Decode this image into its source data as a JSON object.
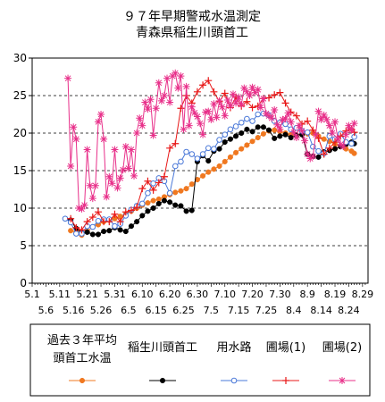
{
  "chart_data": {
    "type": "line",
    "title": [
      "９７年早期警戒水温測定",
      "青森県稲生川頭首工"
    ],
    "ylim": [
      0,
      30
    ],
    "yticks": [
      0,
      5,
      10,
      15,
      20,
      25,
      30
    ],
    "xlim": [
      0,
      122
    ],
    "xtick_labels_top": [
      "5.1",
      "5.11",
      "5.21",
      "5.31",
      "6.10",
      "6.20",
      "6.30",
      "7.10",
      "7.20",
      "7.30",
      "8.9",
      "8.19",
      "8.29"
    ],
    "xtick_labels_bottom": [
      "5.6",
      "5.16",
      "5.26",
      "6.5",
      "6.15",
      "6.25",
      "7.5",
      "7.15",
      "7.25",
      "8.4",
      "8.14",
      "8.24"
    ],
    "grid": "y-dashed",
    "legend_position": "bottom",
    "series": [
      {
        "name": "過去３年平均頭首工水温",
        "color": "#f07820",
        "marker": "circle-filled",
        "x": [
          14,
          16,
          18,
          20,
          22,
          24,
          26,
          28,
          30,
          32,
          34,
          36,
          38,
          40,
          42,
          44,
          46,
          48,
          50,
          52,
          54,
          56,
          58,
          60,
          62,
          64,
          66,
          68,
          70,
          72,
          74,
          76,
          78,
          80,
          82,
          84,
          86,
          88,
          90,
          92,
          94,
          96,
          98,
          100,
          102,
          104,
          106,
          108,
          110,
          112,
          114,
          116,
          117
        ],
        "values": [
          7.0,
          6.8,
          6.4,
          6.9,
          7.5,
          7.8,
          8.2,
          8.4,
          8.6,
          8.9,
          9.2,
          9.6,
          10.0,
          10.4,
          10.7,
          11.0,
          11.2,
          11.5,
          11.8,
          12.1,
          12.3,
          12.6,
          13.2,
          13.8,
          14.3,
          14.8,
          15.2,
          15.6,
          16.2,
          16.8,
          17.4,
          17.9,
          18.4,
          18.9,
          19.4,
          19.9,
          20.3,
          20.4,
          20.2,
          20.0,
          19.8,
          19.7,
          19.8,
          19.9,
          20.0,
          19.6,
          19.2,
          18.9,
          18.5,
          18.2,
          17.9,
          17.6,
          17.3
        ]
      },
      {
        "name": "稲生川頭首工",
        "color": "#000000",
        "marker": "circle-filled",
        "x": [
          12,
          14,
          16,
          18,
          20,
          22,
          24,
          26,
          28,
          30,
          32,
          34,
          36,
          38,
          40,
          42,
          44,
          46,
          48,
          50,
          52,
          54,
          56,
          58,
          60,
          62,
          64,
          66,
          68,
          70,
          72,
          74,
          76,
          78,
          80,
          82,
          84,
          86,
          88,
          90,
          92,
          94,
          96,
          98,
          100,
          102,
          104,
          106,
          108,
          110,
          112,
          114,
          116,
          117
        ],
        "values": [
          8.6,
          8.4,
          7.3,
          6.7,
          6.8,
          6.5,
          6.5,
          6.9,
          7.0,
          7.4,
          7.1,
          6.9,
          7.6,
          8.2,
          9.0,
          9.6,
          10.0,
          10.6,
          11.0,
          10.8,
          10.4,
          10.3,
          9.6,
          9.7,
          16.2,
          17.0,
          16.3,
          17.6,
          17.9,
          18.8,
          19.2,
          19.6,
          20.0,
          20.5,
          20.2,
          20.8,
          20.8,
          20.4,
          19.3,
          19.6,
          19.8,
          19.4,
          19.7,
          19.8,
          17.2,
          16.9,
          16.8,
          17.5,
          17.7,
          17.9,
          18.2,
          18.5,
          18.8,
          18.6
        ]
      },
      {
        "name": "用水路",
        "color": "#4a78d8",
        "marker": "circle-open",
        "x": [
          12,
          14,
          16,
          18,
          20,
          22,
          24,
          26,
          28,
          30,
          32,
          34,
          36,
          38,
          40,
          42,
          44,
          46,
          48,
          50,
          52,
          54,
          56,
          58,
          60,
          62,
          64,
          66,
          68,
          70,
          72,
          74,
          76,
          78,
          80,
          82,
          84,
          86,
          88,
          90,
          92,
          94,
          96,
          98,
          100,
          102,
          104,
          106,
          108,
          110,
          112,
          114,
          116,
          117
        ],
        "values": [
          8.6,
          8.1,
          6.6,
          6.6,
          7.6,
          7.5,
          8.3,
          8.5,
          8.5,
          7.6,
          7.9,
          9.0,
          9.8,
          10.3,
          10.6,
          12.0,
          13.3,
          14.0,
          13.6,
          12.0,
          15.6,
          16.2,
          17.5,
          17.2,
          16.6,
          17.2,
          18.0,
          17.9,
          19.1,
          19.8,
          20.5,
          20.9,
          21.4,
          21.9,
          21.6,
          22.5,
          22.6,
          22.4,
          21.6,
          21.4,
          21.2,
          20.5,
          20.7,
          20.3,
          20.1,
          18.2,
          17.6,
          17.3,
          19.6,
          19.2,
          19.9,
          18.8,
          18.6,
          19.5
        ]
      },
      {
        "name": "圃場(1)",
        "color": "#e81818",
        "marker": "plus",
        "x": [
          14,
          16,
          18,
          20,
          22,
          24,
          26,
          28,
          30,
          32,
          34,
          36,
          38,
          40,
          42,
          44,
          46,
          48,
          50,
          52,
          54,
          56,
          58,
          60,
          62,
          64,
          66,
          68,
          70,
          72,
          74,
          76,
          78,
          80,
          82,
          84,
          86,
          88,
          90,
          92,
          94,
          96,
          98,
          100,
          102,
          104,
          106,
          108,
          110,
          112,
          114,
          116,
          117
        ],
        "values": [
          8.6,
          7.4,
          7.1,
          8.2,
          8.8,
          9.5,
          8.2,
          8.2,
          9.2,
          8.2,
          9.5,
          9.7,
          10.1,
          12.6,
          13.6,
          12.4,
          13.4,
          14.2,
          18.0,
          18.6,
          23.3,
          25.0,
          24.0,
          25.5,
          26.4,
          27.0,
          25.5,
          24.2,
          25.3,
          23.4,
          24.8,
          23.6,
          24.2,
          23.4,
          23.6,
          24.6,
          24.7,
          25.1,
          25.4,
          24.0,
          22.8,
          22.3,
          21.2,
          21.6,
          20.4,
          19.3,
          17.2,
          18.0,
          18.8,
          19.6,
          20.3,
          20.5,
          20.1
        ]
      },
      {
        "name": "圃場(2)",
        "color": "#e8308a",
        "marker": "star",
        "x": [
          13,
          14,
          15,
          16,
          17,
          18,
          19,
          20,
          21,
          22,
          23,
          24,
          25,
          26,
          27,
          28,
          29,
          30,
          31,
          32,
          33,
          34,
          35,
          36,
          37,
          38,
          39,
          40,
          41,
          42,
          43,
          44,
          45,
          46,
          47,
          48,
          49,
          50,
          51,
          52,
          53,
          54,
          55,
          56,
          57,
          58,
          59,
          60,
          61,
          62,
          63,
          64,
          65,
          66,
          67,
          68,
          69,
          70,
          71,
          72,
          73,
          74,
          75,
          76,
          77,
          78,
          79,
          80,
          81,
          82,
          83,
          84,
          85,
          86,
          87,
          88,
          89,
          90,
          91,
          92,
          93,
          94,
          95,
          96,
          97,
          98,
          99,
          100,
          101,
          102,
          103,
          104,
          105,
          106,
          107,
          108,
          109,
          110,
          111,
          112,
          113,
          114,
          115,
          116,
          117
        ],
        "values": [
          27.3,
          15.6,
          20.8,
          19.2,
          10.0,
          9.9,
          10.4,
          17.8,
          13.0,
          11.3,
          13.0,
          21.5,
          22.5,
          19.2,
          11.5,
          14.2,
          13.3,
          17.8,
          12.7,
          14.0,
          15.1,
          18.2,
          15.3,
          17.8,
          14.3,
          20.0,
          22.0,
          21.0,
          24.1,
          23.2,
          24.5,
          19.7,
          23.3,
          26.7,
          24.3,
          25.0,
          27.3,
          24.1,
          27.6,
          28.0,
          26.0,
          27.6,
          20.5,
          26.2,
          21.0,
          23.5,
          22.7,
          22.2,
          21.3,
          19.8,
          22.8,
          22.9,
          21.8,
          23.9,
          22.1,
          24.3,
          23.5,
          22.3,
          24.4,
          23.6,
          25.2,
          24.0,
          24.8,
          23.8,
          26.0,
          25.5,
          25.0,
          26.1,
          25.4,
          25.8,
          23.4,
          24.6,
          22.6,
          22.3,
          22.0,
          23.1,
          21.1,
          20.5,
          21.8,
          21.9,
          22.7,
          21.5,
          20.1,
          19.4,
          21.0,
          20.3,
          19.0,
          17.2,
          16.6,
          16.9,
          19.8,
          22.9,
          21.8,
          22.4,
          21.8,
          21.0,
          20.0,
          21.5,
          19.3,
          18.5,
          18.2,
          19.8,
          21.0,
          20.4,
          21.3
        ]
      }
    ]
  }
}
